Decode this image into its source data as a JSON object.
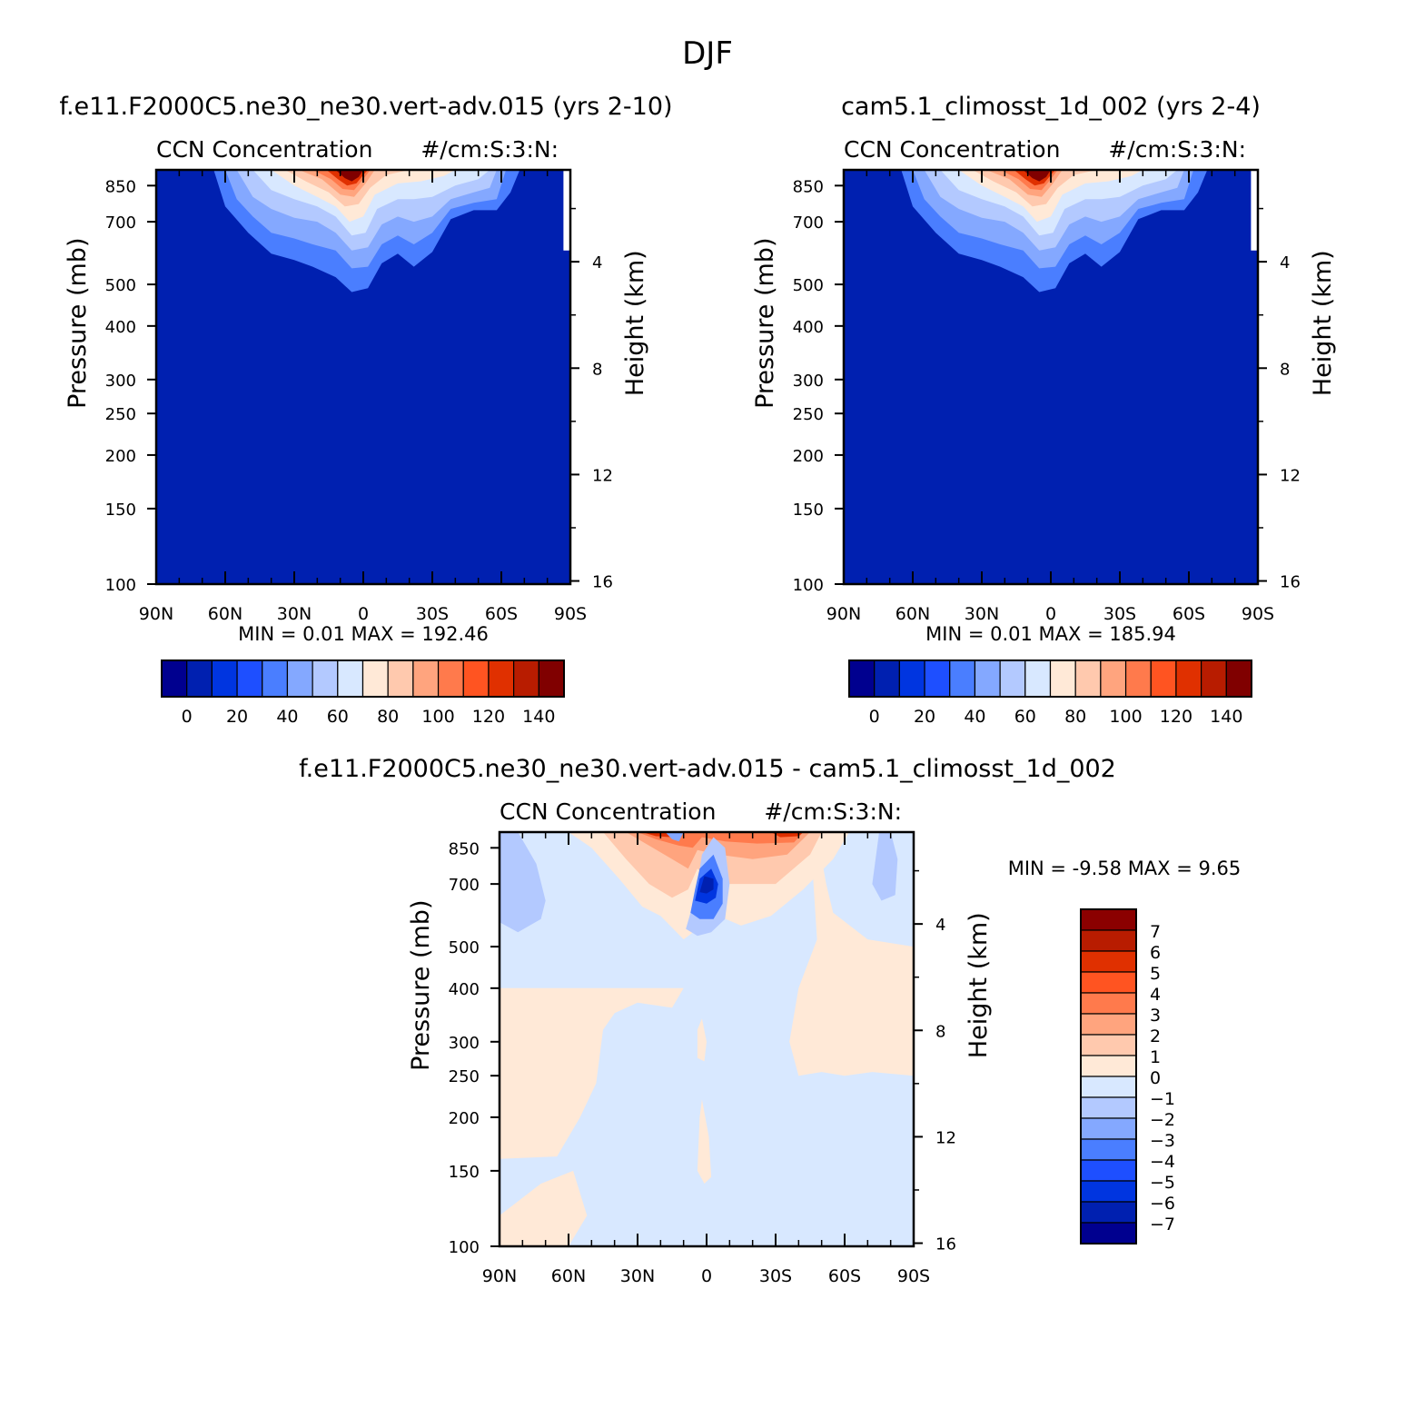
{
  "figure_title": "DJF",
  "chart_data": [
    {
      "type": "heatmap",
      "title": "f.e11.F2000C5.ne30_ne30.vert-adv.015 (yrs 2-10)",
      "subtitle_left": "CCN Concentration",
      "subtitle_right": "#/cm:S:3:N:",
      "ylabel": "Pressure (mb)",
      "ylabel_right": "Height (km)",
      "x_ticks": [
        "90N",
        "60N",
        "30N",
        "0",
        "30S",
        "60S",
        "90S"
      ],
      "y_ticks": [
        100,
        150,
        200,
        250,
        300,
        400,
        500,
        700,
        850
      ],
      "y_ticks_right": [
        16,
        12,
        8,
        4
      ],
      "xlim": [
        90,
        -90
      ],
      "ylim": [
        925,
        100
      ],
      "y_scale": "log",
      "min_label": "MIN =",
      "min_value": "0.01",
      "max_label": "MAX =",
      "max_value": "192.46",
      "colorbar": {
        "orientation": "horizontal",
        "tick_labels": [
          "0",
          "20",
          "40",
          "60",
          "80",
          "100",
          "120",
          "140"
        ],
        "colors": [
          "#00008f",
          "#0020b0",
          "#0035e0",
          "#1e4fff",
          "#4a7eff",
          "#84a8ff",
          "#b3c9ff",
          "#d8e8ff",
          "#ffe9d7",
          "#ffc9ae",
          "#ffa47e",
          "#ff7a4c",
          "#ff5421",
          "#e03000",
          "#b81c00",
          "#800000"
        ]
      }
    },
    {
      "type": "heatmap",
      "title": "cam5.1_climosst_1d_002 (yrs 2-4)",
      "subtitle_left": "CCN Concentration",
      "subtitle_right": "#/cm:S:3:N:",
      "ylabel": "Pressure (mb)",
      "ylabel_right": "Height (km)",
      "x_ticks": [
        "90N",
        "60N",
        "30N",
        "0",
        "30S",
        "60S",
        "90S"
      ],
      "y_ticks": [
        100,
        150,
        200,
        250,
        300,
        400,
        500,
        700,
        850
      ],
      "y_ticks_right": [
        16,
        12,
        8,
        4
      ],
      "xlim": [
        90,
        -90
      ],
      "ylim": [
        925,
        100
      ],
      "y_scale": "log",
      "min_label": "MIN =",
      "min_value": "0.01",
      "max_label": "MAX =",
      "max_value": "185.94",
      "colorbar": {
        "orientation": "horizontal",
        "tick_labels": [
          "0",
          "20",
          "40",
          "60",
          "80",
          "100",
          "120",
          "140"
        ],
        "colors": [
          "#00008f",
          "#0020b0",
          "#0035e0",
          "#1e4fff",
          "#4a7eff",
          "#84a8ff",
          "#b3c9ff",
          "#d8e8ff",
          "#ffe9d7",
          "#ffc9ae",
          "#ffa47e",
          "#ff7a4c",
          "#ff5421",
          "#e03000",
          "#b81c00",
          "#800000"
        ]
      }
    },
    {
      "type": "heatmap",
      "title": "f.e11.F2000C5.ne30_ne30.vert-adv.015 - cam5.1_climosst_1d_002",
      "subtitle_left": "CCN Concentration",
      "subtitle_right": "#/cm:S:3:N:",
      "ylabel": "Pressure (mb)",
      "ylabel_right": "Height (km)",
      "x_ticks": [
        "90N",
        "60N",
        "30N",
        "0",
        "30S",
        "60S",
        "90S"
      ],
      "y_ticks": [
        100,
        150,
        200,
        250,
        300,
        400,
        500,
        700,
        850
      ],
      "y_ticks_right": [
        16,
        12,
        8,
        4
      ],
      "xlim": [
        90,
        -90
      ],
      "ylim": [
        925,
        100
      ],
      "y_scale": "log",
      "min_label": "MIN =",
      "min_value": "-9.58",
      "max_label": "MAX =",
      "max_value": "9.65",
      "colorbar": {
        "orientation": "vertical",
        "tick_labels": [
          "7",
          "6",
          "5",
          "4",
          "3",
          "2",
          "1",
          "0",
          "-1",
          "-2",
          "-3",
          "-4",
          "-5",
          "-6",
          "-7"
        ],
        "colors": [
          "#8b0000",
          "#b81c00",
          "#e03000",
          "#ff5421",
          "#ff7a4c",
          "#ffa47e",
          "#ffc9ae",
          "#ffe9d7",
          "#d8e8ff",
          "#b3c9ff",
          "#84a8ff",
          "#4a7eff",
          "#1e4fff",
          "#0035e0",
          "#0020b0",
          "#00008f"
        ]
      }
    }
  ]
}
